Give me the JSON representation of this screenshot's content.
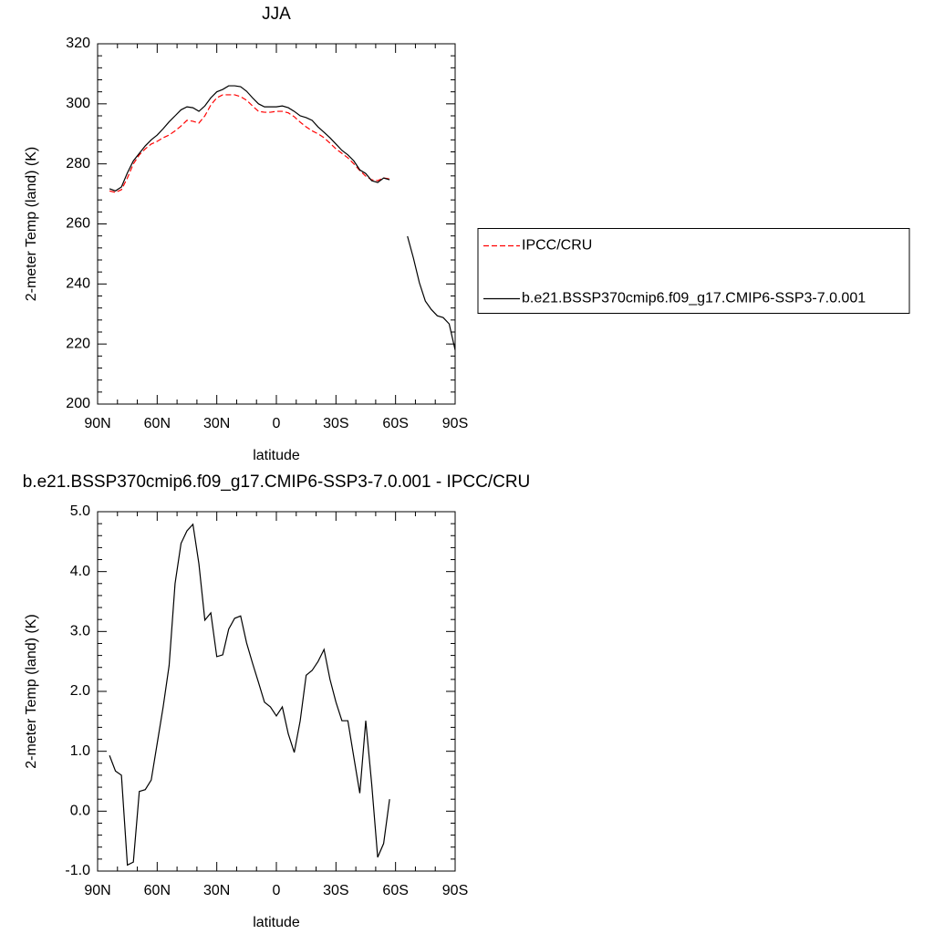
{
  "chart_data": [
    {
      "type": "line",
      "title": "JJA",
      "xlabel": "latitude",
      "ylabel": "2-meter Temp (land) (K)",
      "x": [
        84,
        81,
        78,
        75,
        72,
        69,
        66,
        63,
        60,
        57,
        54,
        51,
        48,
        45,
        42,
        39,
        36,
        33,
        30,
        27,
        24,
        21,
        18,
        15,
        12,
        9,
        6,
        3,
        0,
        -3,
        -6,
        -9,
        -12,
        -15,
        -18,
        -21,
        -24,
        -27,
        -30,
        -33,
        -36,
        -39,
        -42,
        -45,
        -48,
        -51,
        -54,
        -57,
        -60,
        -63,
        -66,
        -69,
        -72,
        -75,
        -78,
        -81,
        -84,
        -87,
        -90
      ],
      "xlim": [
        90,
        -90
      ],
      "xticks": [
        {
          "value": 90,
          "label": "90N"
        },
        {
          "value": 60,
          "label": "60N"
        },
        {
          "value": 30,
          "label": "30N"
        },
        0,
        {
          "value": -30,
          "label": "30S"
        },
        {
          "value": -60,
          "label": "60S"
        },
        {
          "value": -90,
          "label": "90S"
        }
      ],
      "ylim": [
        200,
        320
      ],
      "yticks": [
        200,
        220,
        240,
        260,
        280,
        300,
        320
      ],
      "legend": "outside-right",
      "series": [
        {
          "name": "IPCC/CRU",
          "color": "#ff0000",
          "dash": "dashed",
          "values": [
            271,
            270.5,
            271.4,
            275.3,
            280,
            283,
            285,
            286.6,
            287.5,
            288.7,
            289.6,
            291,
            292.6,
            294.5,
            294.2,
            293.6,
            296,
            299.6,
            302,
            303,
            303,
            303,
            302.4,
            301.2,
            299.3,
            297.5,
            297.2,
            297.2,
            297.5,
            297.5,
            297,
            295.7,
            293.9,
            292.3,
            291,
            290,
            288.7,
            286.9,
            285,
            283.5,
            282,
            280,
            277.8,
            275.9,
            274.7,
            274.4,
            275.3,
            275,
            null,
            null,
            null,
            null,
            null,
            null,
            null,
            null,
            null,
            null,
            null
          ]
        },
        {
          "name": "b.e21.BSSP370cmip6.f09_g17.CMIP6-SSP3-7.0.001",
          "color": "#000000",
          "values": [
            271.7,
            271,
            272.3,
            277,
            281,
            283.5,
            286,
            288,
            289.6,
            291.7,
            294,
            296,
            298,
            299,
            298.7,
            297.5,
            299.3,
            302,
            304,
            304.8,
            306,
            306,
            305.7,
            304.2,
            302,
            300,
            299,
            299,
            299,
            299.3,
            298.7,
            297.5,
            296,
            295.4,
            294.5,
            292.3,
            290.5,
            288.7,
            286.6,
            284.5,
            283,
            281,
            278,
            276.8,
            274.4,
            273.8,
            275.3,
            274.7,
            null,
            null,
            255.9,
            248.6,
            240.4,
            234.3,
            231.5,
            229.4,
            228.8,
            226.7,
            218
          ]
        }
      ]
    },
    {
      "type": "line",
      "title": "b.e21.BSSP370cmip6.f09_g17.CMIP6-SSP3-7.0.001 - IPCC/CRU",
      "xlabel": "latitude",
      "ylabel": "2-meter Temp (land) (K)",
      "x": [
        84,
        81,
        78,
        75,
        72,
        69,
        66,
        63,
        60,
        57,
        54,
        51,
        48,
        45,
        42,
        39,
        36,
        33,
        30,
        27,
        24,
        21,
        18,
        15,
        12,
        9,
        6,
        3,
        0,
        -3,
        -6,
        -9,
        -12,
        -15,
        -18,
        -21,
        -24,
        -27,
        -30,
        -33,
        -36,
        -39,
        -42,
        -45,
        -48,
        -51,
        -54,
        -57,
        -60,
        -63,
        -66,
        -69,
        -72,
        -75,
        -78,
        -81,
        -84,
        -87,
        -90
      ],
      "xlim": [
        90,
        -90
      ],
      "xticks": [
        {
          "value": 90,
          "label": "90N"
        },
        {
          "value": 60,
          "label": "60N"
        },
        {
          "value": 30,
          "label": "30N"
        },
        0,
        {
          "value": -30,
          "label": "30S"
        },
        {
          "value": -60,
          "label": "60S"
        },
        {
          "value": -90,
          "label": "90S"
        }
      ],
      "ylim": [
        -1,
        5
      ],
      "yticks": [
        {
          "value": -1,
          "label": "-1.0"
        },
        {
          "value": 0,
          "label": "0.0"
        },
        {
          "value": 1,
          "label": "1.0"
        },
        {
          "value": 2,
          "label": "2.0"
        },
        {
          "value": 3,
          "label": "3.0"
        },
        {
          "value": 4,
          "label": "4.0"
        },
        {
          "value": 5,
          "label": "5.0"
        }
      ],
      "series": [
        {
          "color": "#000000",
          "values": [
            0.93,
            0.67,
            0.6,
            -0.9,
            -0.85,
            0.33,
            0.36,
            0.52,
            1.13,
            1.74,
            2.43,
            3.8,
            4.47,
            4.68,
            4.79,
            4.13,
            3.19,
            3.31,
            2.58,
            2.61,
            3.04,
            3.22,
            3.26,
            2.81,
            2.47,
            2.15,
            1.82,
            1.74,
            1.59,
            1.74,
            1.29,
            0.98,
            1.51,
            2.27,
            2.35,
            2.5,
            2.7,
            2.2,
            1.82,
            1.51,
            1.51,
            0.9,
            0.3,
            1.51,
            0.45,
            -0.77,
            -0.54,
            0.2,
            null,
            null,
            null,
            null,
            null,
            null,
            null,
            null,
            null,
            null,
            null
          ]
        }
      ]
    }
  ]
}
